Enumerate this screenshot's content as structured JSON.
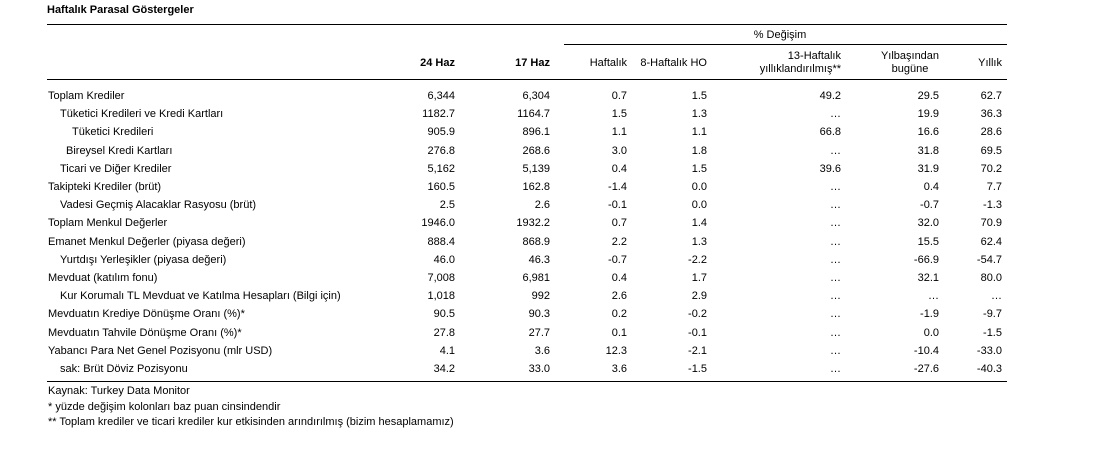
{
  "title": "Haftalık Parasal Göstergeler",
  "header": {
    "group_label": "% Değişim",
    "col_24haz": "24 Haz",
    "col_17haz": "17 Haz",
    "col_haftalik": "Haftalık",
    "col_8hafta": "8-Haftalık HO",
    "col_13hafta_l1": "13-Haftalık",
    "col_13hafta_l2": "yıllıklandırılmış**",
    "col_ytd_l1": "Yılbaşından",
    "col_ytd_l2": "bugüne",
    "col_yillik": "Yıllık"
  },
  "rows": [
    {
      "label": "Toplam Krediler",
      "v1": "6,344",
      "v2": "6,304",
      "w": "0.7",
      "h8": "1.5",
      "h13": "49.2",
      "ytd": "29.5",
      "y": "62.7"
    },
    {
      "label": "Tüketici Kredileri ve Kredi Kartları",
      "v1": "1182.7",
      "v2": "1164.7",
      "w": "1.5",
      "h8": "1.3",
      "h13": "…",
      "ytd": "19.9",
      "y": "36.3"
    },
    {
      "label": "Tüketici Kredileri",
      "v1": "905.9",
      "v2": "896.1",
      "w": "1.1",
      "h8": "1.1",
      "h13": "66.8",
      "ytd": "16.6",
      "y": "28.6"
    },
    {
      "label": "Bireysel Kredi Kartları",
      "v1": "276.8",
      "v2": "268.6",
      "w": "3.0",
      "h8": "1.8",
      "h13": "…",
      "ytd": "31.8",
      "y": "69.5"
    },
    {
      "label": "Ticari ve Diğer Krediler",
      "v1": "5,162",
      "v2": "5,139",
      "w": "0.4",
      "h8": "1.5",
      "h13": "39.6",
      "ytd": "31.9",
      "y": "70.2"
    },
    {
      "label": "Takipteki Krediler (brüt)",
      "v1": "160.5",
      "v2": "162.8",
      "w": "-1.4",
      "h8": "0.0",
      "h13": "…",
      "ytd": "0.4",
      "y": "7.7"
    },
    {
      "label": "Vadesi Geçmiş Alacaklar Rasyosu (brüt)",
      "v1": "2.5",
      "v2": "2.6",
      "w": "-0.1",
      "h8": "0.0",
      "h13": "…",
      "ytd": "-0.7",
      "y": "-1.3"
    },
    {
      "label": "Toplam Menkul Değerler",
      "v1": "1946.0",
      "v2": "1932.2",
      "w": "0.7",
      "h8": "1.4",
      "h13": "…",
      "ytd": "32.0",
      "y": "70.9"
    },
    {
      "label": "Emanet Menkul Değerler (piyasa değeri)",
      "v1": "888.4",
      "v2": "868.9",
      "w": "2.2",
      "h8": "1.3",
      "h13": "…",
      "ytd": "15.5",
      "y": "62.4"
    },
    {
      "label": "Yurtdışı Yerleşikler (piyasa değeri)",
      "v1": "46.0",
      "v2": "46.3",
      "w": "-0.7",
      "h8": "-2.2",
      "h13": "…",
      "ytd": "-66.9",
      "y": "-54.7"
    },
    {
      "label": "Mevduat (katılım fonu)",
      "v1": "7,008",
      "v2": "6,981",
      "w": "0.4",
      "h8": "1.7",
      "h13": "…",
      "ytd": "32.1",
      "y": "80.0"
    },
    {
      "label": "Kur Korumalı TL Mevduat ve Katılma Hesapları (Bilgi için)",
      "v1": "1,018",
      "v2": "992",
      "w": "2.6",
      "h8": "2.9",
      "h13": "…",
      "ytd": "…",
      "y": "…"
    },
    {
      "label": "Mevduatın Krediye Dönüşme Oranı (%)*",
      "v1": "90.5",
      "v2": "90.3",
      "w": "0.2",
      "h8": "-0.2",
      "h13": "…",
      "ytd": "-1.9",
      "y": "-9.7"
    },
    {
      "label": "Mevduatın Tahvile Dönüşme Oranı (%)*",
      "v1": "27.8",
      "v2": "27.7",
      "w": "0.1",
      "h8": "-0.1",
      "h13": "…",
      "ytd": "0.0",
      "y": "-1.5"
    },
    {
      "label": "Yabancı Para Net Genel Pozisyonu (mlr USD)",
      "v1": "4.1",
      "v2": "3.6",
      "w": "12.3",
      "h8": "-2.1",
      "h13": "…",
      "ytd": "-10.4",
      "y": "-33.0"
    },
    {
      "label": "sak: Brüt Döviz Pozisyonu",
      "v1": "34.2",
      "v2": "33.0",
      "w": "3.6",
      "h8": "-1.5",
      "h13": "…",
      "ytd": "-27.6",
      "y": "-40.3"
    }
  ],
  "footnotes": {
    "source": "Kaynak: Turkey Data Monitor",
    "note1": "* yüzde değişim kolonları baz puan cinsindendir",
    "note2": "** Toplam krediler ve ticari krediler kur etkisinden arındırılmış (bizim hesaplamamız)"
  }
}
